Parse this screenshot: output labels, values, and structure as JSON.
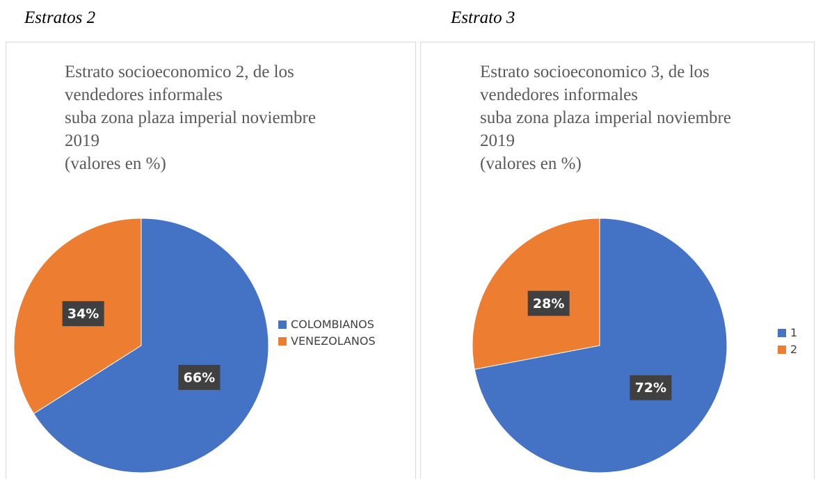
{
  "captions": [
    "Estratos 2",
    "Estrato 3"
  ],
  "chart_data": [
    {
      "type": "pie",
      "title": [
        "Estrato socioeconomico 2, de los",
        "vendedores informales",
        "suba zona plaza imperial noviembre",
        "2019",
        "(valores en %)"
      ],
      "categories": [
        "COLOMBIANOS",
        "VENEZOLANOS"
      ],
      "values": [
        66,
        34
      ],
      "value_labels": [
        "66%",
        "34%"
      ],
      "colors": [
        "#4472c4",
        "#ed7d31"
      ]
    },
    {
      "type": "pie",
      "title": [
        "Estrato socioeconomico 3, de los",
        "vendedores informales",
        "suba zona plaza imperial noviembre",
        "2019",
        "(valores en %)"
      ],
      "categories": [
        "1",
        "2"
      ],
      "values": [
        72,
        28
      ],
      "value_labels": [
        "72%",
        "28%"
      ],
      "colors": [
        "#4472c4",
        "#ed7d31"
      ]
    }
  ]
}
